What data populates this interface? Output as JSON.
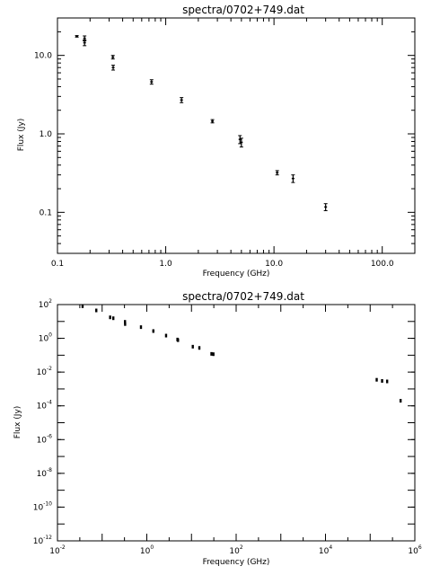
{
  "chart_data": [
    {
      "type": "scatter",
      "title": "spectra/0702+749.dat",
      "xlabel": "Frequency (GHz)",
      "ylabel": "Flux (Jy)",
      "xscale": "log",
      "yscale": "log",
      "xlim": [
        0.1,
        200
      ],
      "ylim": [
        0.03,
        30
      ],
      "x_ticks": [
        {
          "value": 0.1,
          "label": "0.1"
        },
        {
          "value": 1,
          "label": "1.0"
        },
        {
          "value": 10,
          "label": "10.0"
        },
        {
          "value": 100,
          "label": "100.0"
        }
      ],
      "y_ticks": [
        {
          "value": 0.1,
          "label": "0.1"
        },
        {
          "value": 1,
          "label": "1.0"
        },
        {
          "value": 10,
          "label": "10.0"
        }
      ],
      "points": [
        {
          "x": 0.151,
          "y": 17.5,
          "err": 0.4
        },
        {
          "x": 0.178,
          "y": 16.5,
          "err": 1.2
        },
        {
          "x": 0.178,
          "y": 14.5,
          "err": 1.2
        },
        {
          "x": 0.325,
          "y": 9.5,
          "err": 0.5
        },
        {
          "x": 0.327,
          "y": 7.0,
          "err": 0.5
        },
        {
          "x": 0.74,
          "y": 4.6,
          "err": 0.3
        },
        {
          "x": 1.4,
          "y": 2.7,
          "err": 0.2
        },
        {
          "x": 2.7,
          "y": 1.45,
          "err": 0.07
        },
        {
          "x": 4.85,
          "y": 0.85,
          "err": 0.1
        },
        {
          "x": 5.0,
          "y": 0.78,
          "err": 0.1
        },
        {
          "x": 10.7,
          "y": 0.32,
          "err": 0.02
        },
        {
          "x": 15.0,
          "y": 0.27,
          "err": 0.03
        },
        {
          "x": 30.0,
          "y": 0.117,
          "err": 0.012
        }
      ]
    },
    {
      "type": "scatter",
      "title": "spectra/0702+749.dat",
      "xlabel": "Frequency (GHz)",
      "ylabel": "Flux (Jy)",
      "xscale": "log",
      "yscale": "log",
      "xlim": [
        0.01,
        1000000
      ],
      "ylim": [
        1e-12,
        100
      ],
      "x_ticks": [
        {
          "value": 0.01,
          "base": "10",
          "exp": "-2"
        },
        {
          "value": 1,
          "base": "10",
          "exp": "0"
        },
        {
          "value": 100,
          "base": "10",
          "exp": "2"
        },
        {
          "value": 10000,
          "base": "10",
          "exp": "4"
        },
        {
          "value": 1000000,
          "base": "10",
          "exp": "6"
        }
      ],
      "y_ticks": [
        {
          "value": 1e-12,
          "base": "10",
          "exp": "-12"
        },
        {
          "value": 1e-10,
          "base": "10",
          "exp": "-10"
        },
        {
          "value": 1e-08,
          "base": "10",
          "exp": "-8"
        },
        {
          "value": 1e-06,
          "base": "10",
          "exp": "-6"
        },
        {
          "value": 0.0001,
          "base": "10",
          "exp": "-4"
        },
        {
          "value": 0.01,
          "base": "10",
          "exp": "-2"
        },
        {
          "value": 1,
          "base": "10",
          "exp": "0"
        },
        {
          "value": 100,
          "base": "10",
          "exp": "2"
        }
      ],
      "points": [
        {
          "x": 0.0365,
          "y": 80
        },
        {
          "x": 0.074,
          "y": 45
        },
        {
          "x": 0.151,
          "y": 17.5
        },
        {
          "x": 0.178,
          "y": 15.5
        },
        {
          "x": 0.325,
          "y": 9.5
        },
        {
          "x": 0.327,
          "y": 7.0
        },
        {
          "x": 0.74,
          "y": 4.6
        },
        {
          "x": 1.4,
          "y": 2.7
        },
        {
          "x": 2.7,
          "y": 1.45
        },
        {
          "x": 4.85,
          "y": 0.85
        },
        {
          "x": 5.0,
          "y": 0.78
        },
        {
          "x": 10.7,
          "y": 0.32
        },
        {
          "x": 15.0,
          "y": 0.27
        },
        {
          "x": 28.0,
          "y": 0.12
        },
        {
          "x": 31.0,
          "y": 0.115
        },
        {
          "x": 140000,
          "y": 0.0035
        },
        {
          "x": 185000,
          "y": 0.003
        },
        {
          "x": 240000,
          "y": 0.0028
        },
        {
          "x": 480000,
          "y": 0.0002
        }
      ]
    }
  ]
}
